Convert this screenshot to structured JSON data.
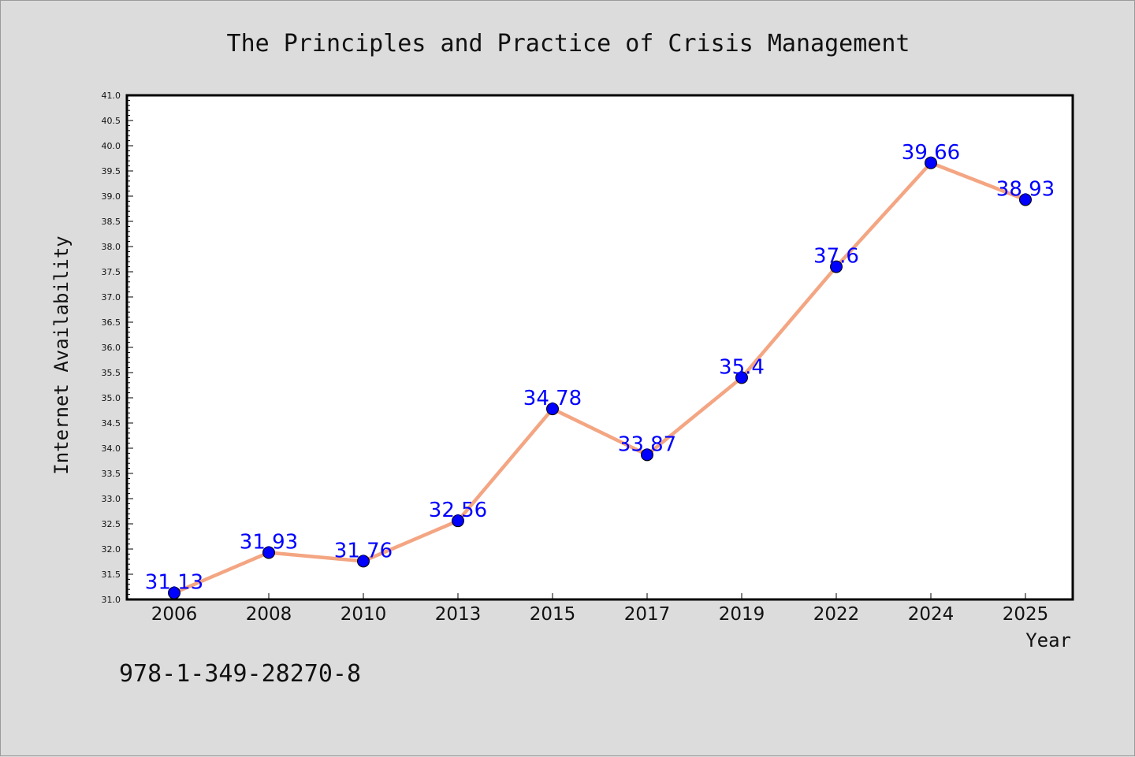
{
  "chart_data": {
    "type": "line",
    "title": "The Principles and Practice of Crisis Management",
    "xlabel": "Year",
    "ylabel": "Internet Availability",
    "categories": [
      "2006",
      "2008",
      "2010",
      "2013",
      "2015",
      "2017",
      "2019",
      "2022",
      "2024",
      "2025"
    ],
    "series": [
      {
        "values": [
          31.13,
          31.93,
          31.76,
          32.56,
          34.78,
          33.87,
          35.4,
          37.6,
          39.66,
          38.93
        ],
        "labels": [
          "31.13",
          "31.93",
          "31.76",
          "32.56",
          "34.78",
          "33.87",
          "35.4",
          "37.6",
          "39.66",
          "38.93"
        ]
      }
    ],
    "ylim": [
      31.0,
      41.0
    ],
    "yticks": [
      "31.0",
      "31.5",
      "32.0",
      "32.5",
      "33.0",
      "33.5",
      "34.0",
      "34.5",
      "35.0",
      "35.5",
      "36.0",
      "36.5",
      "37.0",
      "37.5",
      "38.0",
      "38.5",
      "39.0",
      "39.5",
      "40.0",
      "40.5",
      "41.0"
    ],
    "grid": false,
    "colors": {
      "line": "#f4a582",
      "marker": "#0000ff",
      "label": "#0000ff",
      "background": "#dcdcdc",
      "plot_area": "#ffffff"
    }
  },
  "footer": {
    "isbn": "978-1-349-28270-8"
  }
}
